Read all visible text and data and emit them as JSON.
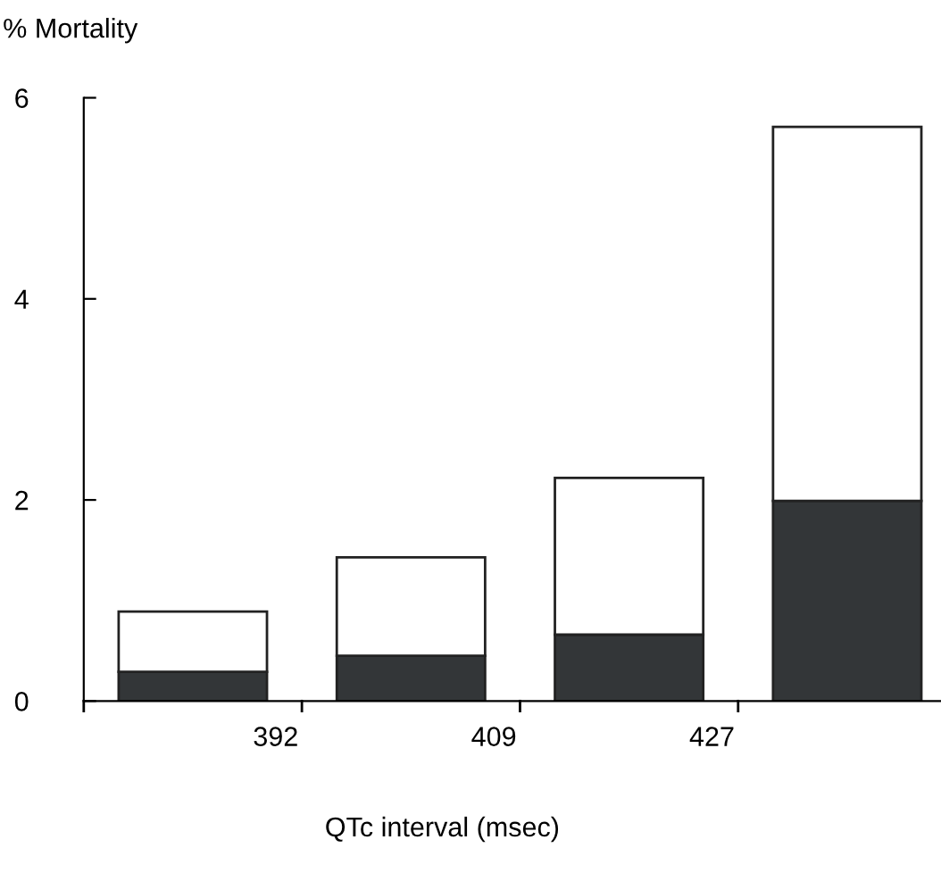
{
  "chart_data": {
    "type": "bar",
    "stacked": true,
    "xlabel": "QTc interval (msec)",
    "ylabel": "% Mortality",
    "categories": [
      null,
      null,
      null,
      null
    ],
    "series": [
      {
        "color": "#333638",
        "values": [
          0.29,
          0.45,
          0.66,
          1.99
        ]
      },
      {
        "color": "#ffffff",
        "values": [
          0.6,
          0.98,
          1.56,
          3.72
        ]
      }
    ],
    "ylim": [
      0,
      6
    ],
    "yticks": [
      0,
      2,
      4,
      6
    ],
    "grid": false,
    "legend": false,
    "annotations": [
      "392",
      "409",
      "427"
    ]
  }
}
